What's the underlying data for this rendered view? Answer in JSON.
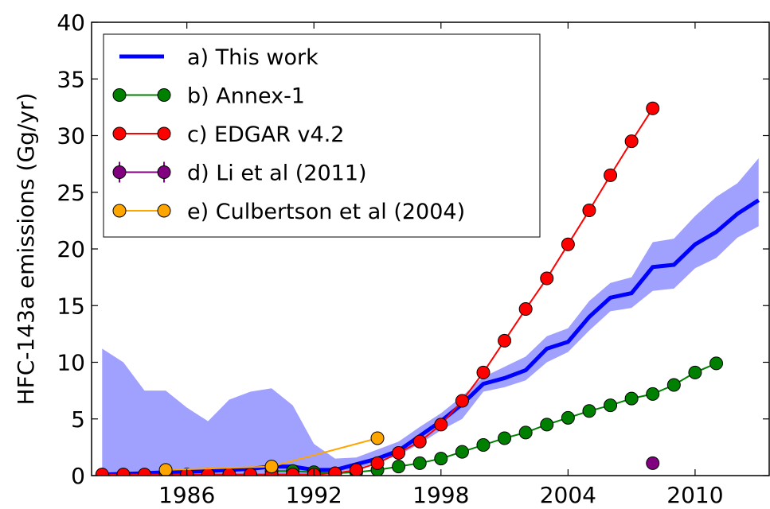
{
  "chart_data": {
    "type": "line",
    "ylabel": "HFC-143a emissions (Gg/yr)",
    "xlim": [
      1981.5,
      2013.5
    ],
    "ylim": [
      0,
      40
    ],
    "xticks": [
      1986,
      1992,
      1998,
      2004,
      2010
    ],
    "yticks": [
      0,
      5,
      10,
      15,
      20,
      25,
      30,
      35,
      40
    ],
    "legend": "upper left",
    "series": [
      {
        "name": "a) This work",
        "color": "#0000ff",
        "band_color": "#a0a0ff",
        "x": [
          1982,
          1983,
          1984,
          1985,
          1986,
          1987,
          1988,
          1989,
          1990,
          1991,
          1992,
          1993,
          1994,
          1995,
          1996,
          1997,
          1998,
          1999,
          2000,
          2001,
          2002,
          2003,
          2004,
          2005,
          2006,
          2007,
          2008,
          2009,
          2010,
          2011,
          2012,
          2013
        ],
        "values": [
          0.1,
          0.15,
          0.2,
          0.3,
          0.35,
          0.4,
          0.5,
          0.6,
          0.8,
          0.8,
          0.5,
          0.5,
          1.0,
          1.5,
          2.2,
          3.5,
          4.8,
          6.3,
          8.1,
          8.6,
          9.3,
          11.2,
          11.8,
          14.0,
          15.7,
          16.1,
          18.4,
          18.6,
          20.4,
          21.5,
          23.1,
          24.3
        ],
        "lower": [
          0,
          0,
          0,
          0,
          0,
          0,
          0,
          0,
          0,
          0,
          0,
          0.3,
          0.6,
          1.2,
          1.8,
          2.8,
          4.0,
          5.0,
          7.4,
          7.8,
          8.4,
          10.0,
          10.9,
          12.8,
          14.5,
          14.8,
          16.3,
          16.5,
          18.3,
          19.2,
          21.0,
          22.0
        ],
        "upper": [
          11.2,
          10.0,
          7.5,
          7.5,
          6.0,
          4.8,
          6.7,
          7.4,
          7.7,
          6.2,
          2.8,
          1.5,
          1.6,
          2.3,
          3.0,
          4.3,
          5.5,
          7.0,
          8.7,
          9.6,
          10.5,
          12.3,
          13.0,
          15.4,
          17.0,
          17.5,
          20.6,
          20.9,
          22.9,
          24.6,
          25.8,
          28.0
        ]
      },
      {
        "name": "b) Annex-1",
        "color": "#008000",
        "x": [
          1990,
          1991,
          1992,
          1993,
          1994,
          1995,
          1996,
          1997,
          1998,
          1999,
          2000,
          2001,
          2002,
          2003,
          2004,
          2005,
          2006,
          2007,
          2008,
          2009,
          2010,
          2011
        ],
        "values": [
          0.4,
          0.4,
          0.3,
          0.2,
          0.3,
          0.5,
          0.8,
          1.1,
          1.5,
          2.1,
          2.7,
          3.3,
          3.8,
          4.5,
          5.1,
          5.7,
          6.2,
          6.8,
          7.2,
          8.0,
          9.1,
          9.9
        ]
      },
      {
        "name": "c) EDGAR v4.2",
        "color": "#ff0000",
        "x": [
          1982,
          1983,
          1984,
          1985,
          1986,
          1987,
          1988,
          1989,
          1990,
          1991,
          1992,
          1993,
          1994,
          1995,
          1996,
          1997,
          1998,
          1999,
          2000,
          2001,
          2002,
          2003,
          2004,
          2005,
          2006,
          2007,
          2008
        ],
        "values": [
          0.1,
          0.1,
          0.1,
          0.1,
          0.1,
          0.1,
          0.1,
          0.1,
          0.1,
          0.1,
          0.1,
          0.2,
          0.5,
          1.1,
          2.0,
          3.0,
          4.5,
          6.6,
          9.1,
          11.9,
          14.7,
          17.4,
          20.4,
          23.4,
          26.5,
          29.5,
          32.4
        ]
      },
      {
        "name": "d) Li et al (2011)",
        "color": "#800080",
        "x": [
          2008
        ],
        "values": [
          1.1
        ],
        "errors": [
          0.1
        ]
      },
      {
        "name": "e) Culbertson et al (2004)",
        "color": "#ffa500",
        "x": [
          1985,
          1990,
          1995
        ],
        "values": [
          0.5,
          0.8,
          3.3
        ]
      }
    ]
  }
}
